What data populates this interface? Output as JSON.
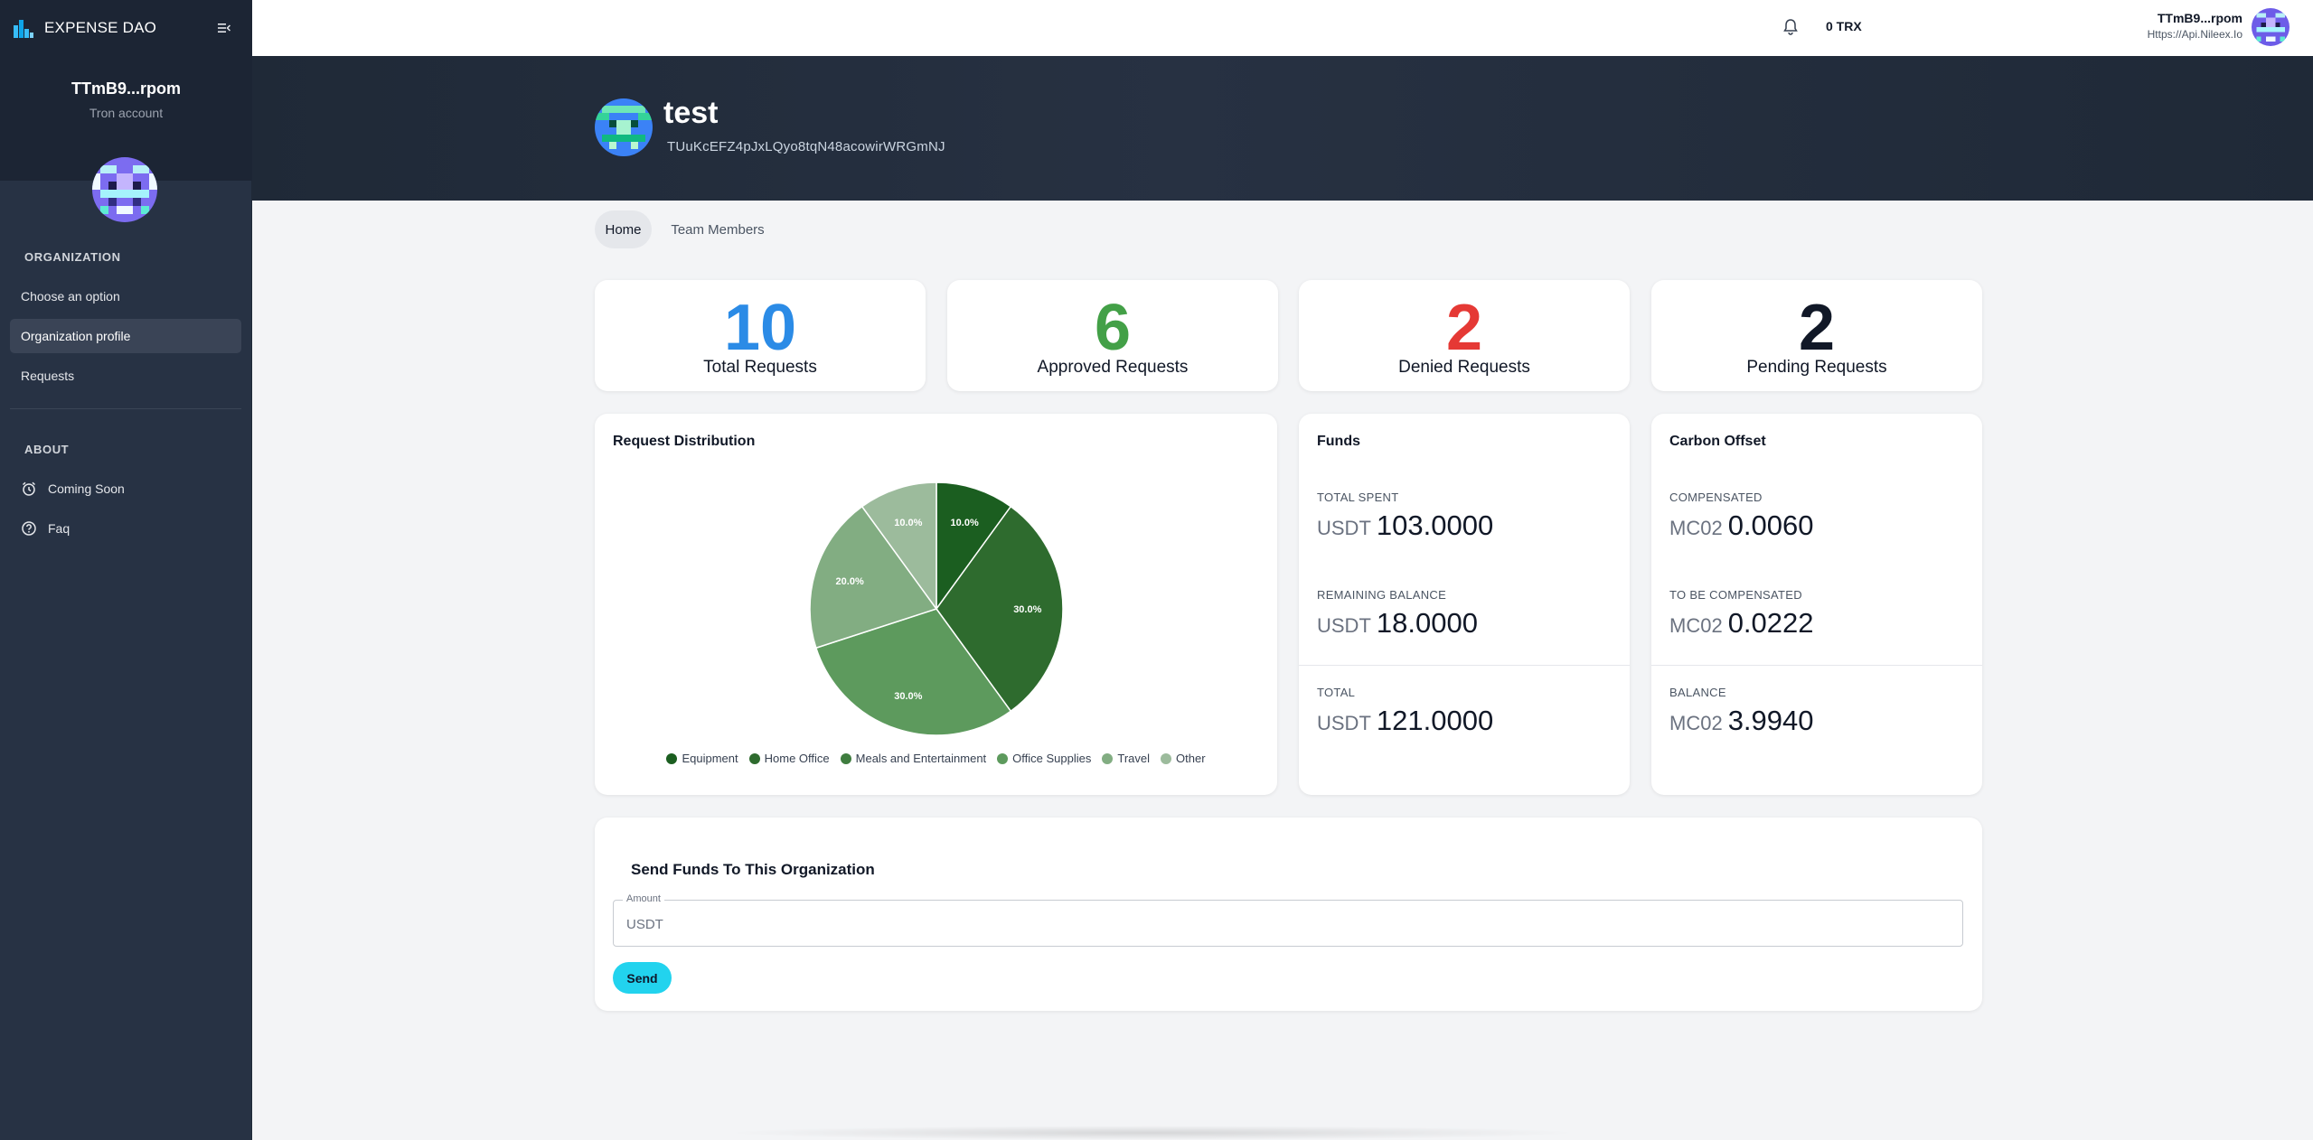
{
  "app": {
    "brand": "EXPENSE DAO",
    "account_name": "TTmB9...rpom",
    "account_type": "Tron account"
  },
  "sidebar": {
    "sections": [
      {
        "title": "ORGANIZATION",
        "items": [
          {
            "label": "Choose an option",
            "active": false
          },
          {
            "label": "Organization profile",
            "active": true
          },
          {
            "label": "Requests",
            "active": false
          }
        ]
      },
      {
        "title": "ABOUT",
        "items": [
          {
            "label": "Coming Soon",
            "icon": "alarm-clock-icon",
            "active": false
          },
          {
            "label": "Faq",
            "icon": "help-circle-icon",
            "active": false
          }
        ]
      }
    ]
  },
  "topbar": {
    "balance": "0 TRX",
    "user_name": "TTmB9...rpom",
    "user_subtitle": "Https://Api.Nileex.Io"
  },
  "org": {
    "name": "test",
    "address": "TUuKcEFZ4pJxLQyo8tqN48acowirWRGmNJ"
  },
  "tabs": [
    {
      "label": "Home",
      "active": true
    },
    {
      "label": "Team Members",
      "active": false
    }
  ],
  "stats": [
    {
      "value": "10",
      "label": "Total Requests",
      "color": "#2b8be6"
    },
    {
      "value": "6",
      "label": "Approved Requests",
      "color": "#43a047"
    },
    {
      "value": "2",
      "label": "Denied Requests",
      "color": "#e53935"
    },
    {
      "value": "2",
      "label": "Pending Requests",
      "color": "#111827"
    }
  ],
  "distribution": {
    "title": "Request Distribution"
  },
  "chart_data": {
    "type": "pie",
    "title": "Request Distribution",
    "categories": [
      "Equipment",
      "Home Office",
      "Meals and Entertainment",
      "Office Supplies",
      "Travel",
      "Other"
    ],
    "values": [
      10,
      30,
      0,
      30,
      20,
      10
    ],
    "labels": [
      "10.0%",
      "30.0%",
      "",
      "30.0%",
      "20.0%",
      "10.0%"
    ],
    "colors": [
      "#1b5e20",
      "#2e6b2e",
      "#3f7d3f",
      "#5d9a5d",
      "#82ad82",
      "#9cbb9c"
    ],
    "legend_position": "bottom"
  },
  "funds": {
    "title": "Funds",
    "metrics": [
      {
        "label": "TOTAL SPENT",
        "unit": "USDT",
        "value": "103.0000"
      },
      {
        "label": "REMAINING BALANCE",
        "unit": "USDT",
        "value": "18.0000"
      },
      {
        "label": "TOTAL",
        "unit": "USDT",
        "value": "121.0000"
      }
    ]
  },
  "carbon": {
    "title": "Carbon Offset",
    "metrics": [
      {
        "label": "COMPENSATED",
        "unit": "MC02",
        "value": "0.0060"
      },
      {
        "label": "TO BE COMPENSATED",
        "unit": "MC02",
        "value": "0.0222"
      },
      {
        "label": "BALANCE",
        "unit": "MC02",
        "value": "3.9940"
      }
    ]
  },
  "send": {
    "title": "Send Funds To This Organization",
    "amount_label": "Amount",
    "amount_placeholder": "USDT",
    "amount_value": "",
    "button_label": "Send"
  }
}
